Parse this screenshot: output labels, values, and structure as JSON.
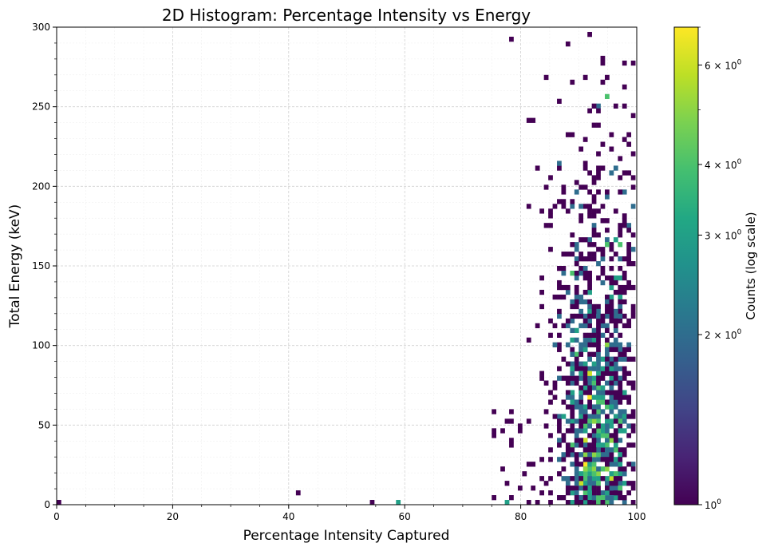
{
  "chart_data": {
    "type": "heatmap",
    "title": "2D Histogram: Percentage Intensity vs Energy",
    "xlabel": "Percentage Intensity Captured",
    "ylabel": "Total Energy (keV)",
    "xlim": [
      0,
      100
    ],
    "ylim": [
      0,
      300
    ],
    "xticks": [
      0,
      20,
      40,
      60,
      80,
      100
    ],
    "yticks": [
      0,
      50,
      100,
      150,
      200,
      250,
      300
    ],
    "xtick_labels": [
      "0",
      "20",
      "40",
      "60",
      "80",
      "100"
    ],
    "ytick_labels": [
      "0",
      "50",
      "100",
      "150",
      "200",
      "250",
      "300"
    ],
    "grid": true,
    "bin_width_x": 0.75,
    "bin_width_y": 3,
    "colorbar": {
      "label": "Counts (log scale)",
      "scale": "log",
      "min": 1,
      "max": 7,
      "colormap": "viridis",
      "ticks": [
        1,
        2,
        3,
        4,
        6
      ],
      "tick_bases": [
        "10",
        "2 × 10",
        "3 × 10",
        "4 × 10",
        "6 × 10"
      ],
      "tick_exponents": [
        "0",
        "0",
        "0",
        "0",
        "0"
      ]
    },
    "notable_bins": [
      {
        "x": 0.5,
        "y": 0.5,
        "count": 1
      },
      {
        "x": 41.5,
        "y": 7,
        "count": 1
      },
      {
        "x": 54.5,
        "y": 0.5,
        "count": 1
      },
      {
        "x": 58.8,
        "y": 0.5,
        "count": 3
      },
      {
        "x": 77.4,
        "y": 0.5,
        "count": 3
      },
      {
        "x": 85,
        "y": 161,
        "count": 1
      },
      {
        "x": 92,
        "y": 82,
        "count": 6
      },
      {
        "x": 92,
        "y": 68,
        "count": 7
      },
      {
        "x": 94.8,
        "y": 256,
        "count": 4
      },
      {
        "x": 97,
        "y": 10,
        "count": 4
      }
    ],
    "cluster": {
      "x_center": 93,
      "x_spread": 3.5,
      "y_min": 0,
      "y_max": 296,
      "peak_energy": 85
    }
  }
}
